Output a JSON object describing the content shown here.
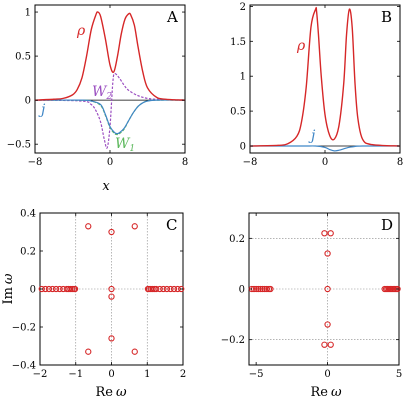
{
  "colors": {
    "rho": "#d62728",
    "j": "#3f86c6",
    "W1": "#5cb85c",
    "W2": "#9b4fc1",
    "marker": "#d62728",
    "grid": "#888888"
  },
  "chart_data": [
    {
      "panel_label": "A",
      "type": "line",
      "xlabel": "x",
      "xlim": [
        -8,
        8
      ],
      "ylim": [
        -0.6,
        1.08
      ],
      "xticks": [
        -8,
        0,
        8
      ],
      "xtick_labels": [
        "−8",
        "0",
        "8"
      ],
      "yticks": [
        -0.5,
        0,
        0.5,
        1
      ],
      "ytick_labels": [
        "−0.5",
        "0",
        "0.5",
        "1"
      ],
      "annotations": {
        "rho": "ρ",
        "j": "j",
        "W2_base": "W",
        "W2_sub": "2",
        "W1_base": "W",
        "W1_sub": "1"
      },
      "series": [
        {
          "key": "rho",
          "x": [
            -8,
            -6,
            -5,
            -4,
            -3.5,
            -3,
            -2.5,
            -2,
            -1.5,
            -1.3,
            -1,
            -0.5,
            0,
            0.4,
            0.8,
            1.2,
            1.6,
            2,
            2.2,
            2.6,
            3,
            3.5,
            4,
            5,
            6,
            8
          ],
          "y": [
            0,
            0.01,
            0.02,
            0.06,
            0.12,
            0.25,
            0.5,
            0.8,
            0.97,
            1.0,
            0.95,
            0.7,
            0.4,
            0.32,
            0.5,
            0.75,
            0.92,
            0.98,
            0.97,
            0.85,
            0.6,
            0.32,
            0.14,
            0.03,
            0.01,
            0
          ]
        },
        {
          "key": "j",
          "x": [
            -8,
            -3,
            -2,
            -1,
            -0.5,
            0,
            0.5,
            0.8,
            1,
            1.5,
            2,
            2.5,
            3,
            3.5,
            4,
            5,
            8
          ],
          "y": [
            0,
            0,
            -0.01,
            -0.05,
            -0.16,
            -0.3,
            -0.37,
            -0.38,
            -0.37,
            -0.32,
            -0.23,
            -0.14,
            -0.07,
            -0.03,
            -0.01,
            0,
            0
          ]
        },
        {
          "key": "W1",
          "x": [
            -8,
            -3,
            -2,
            -1,
            -0.5,
            0,
            0.5,
            0.8,
            1,
            1.5,
            2,
            2.5,
            3,
            3.5,
            4,
            5,
            8
          ],
          "y": [
            0,
            0,
            -0.01,
            -0.06,
            -0.17,
            -0.31,
            -0.38,
            -0.39,
            -0.38,
            -0.33,
            -0.23,
            -0.14,
            -0.07,
            -0.03,
            -0.01,
            0,
            0
          ]
        },
        {
          "key": "W2",
          "x": [
            -8,
            -3,
            -2,
            -1.5,
            -1,
            -0.6,
            -0.3,
            0,
            0.3,
            0.5,
            1,
            1.5,
            2,
            3,
            4,
            5,
            8
          ],
          "y": [
            0,
            -0.01,
            -0.05,
            -0.12,
            -0.25,
            -0.45,
            -0.54,
            -0.3,
            0.2,
            0.3,
            0.25,
            0.17,
            0.11,
            0.05,
            0.02,
            0.01,
            0
          ]
        }
      ]
    },
    {
      "panel_label": "B",
      "type": "line",
      "xlim": [
        -8,
        8
      ],
      "ylim": [
        -0.1,
        2.02
      ],
      "xticks": [
        -8,
        0,
        8
      ],
      "xtick_labels": [
        "−8",
        "0",
        "8"
      ],
      "yticks": [
        0,
        0.5,
        1,
        1.5,
        2
      ],
      "ytick_labels": [
        "0",
        "0.5",
        "1",
        "1.5",
        "2"
      ],
      "annotations": {
        "rho": "ρ",
        "j": "j"
      },
      "series": [
        {
          "key": "rho",
          "x": [
            -8,
            -5,
            -4,
            -3,
            -2.5,
            -2,
            -1.5,
            -1,
            -0.9,
            -0.7,
            -0.4,
            0,
            0.5,
            1,
            1.5,
            2,
            2.3,
            2.6,
            2.9,
            3.2,
            3.5,
            4,
            5,
            8
          ],
          "y": [
            0,
            0.01,
            0.03,
            0.14,
            0.35,
            0.85,
            1.7,
            1.96,
            1.93,
            1.6,
            1.0,
            0.45,
            0.15,
            0.1,
            0.3,
            0.9,
            1.6,
            1.96,
            1.7,
            0.9,
            0.4,
            0.1,
            0.02,
            0
          ]
        },
        {
          "key": "j",
          "x": [
            -8,
            -3,
            -2,
            -1,
            0,
            0.5,
            1,
            1.5,
            2,
            2.5,
            3,
            4,
            8
          ],
          "y": [
            0,
            0,
            0,
            0,
            -0.02,
            -0.05,
            -0.07,
            -0.06,
            -0.04,
            -0.02,
            -0.01,
            0,
            0
          ]
        }
      ]
    },
    {
      "panel_label": "C",
      "type": "scatter",
      "xlabel_base": "Re",
      "ylabel_base": "Im",
      "var": "ω",
      "xlim": [
        -2,
        2
      ],
      "ylim": [
        -0.4,
        0.4
      ],
      "xticks": [
        -2,
        -1,
        0,
        1,
        2
      ],
      "xtick_labels": [
        "−2",
        "−1",
        "0",
        "1",
        "2"
      ],
      "yticks": [
        -0.4,
        -0.2,
        0,
        0.2,
        0.4
      ],
      "ytick_labels": [
        "−0.4",
        "−0.2",
        "0",
        "0.2",
        "0.4"
      ],
      "vlines": [
        -1,
        0,
        1
      ],
      "hlines": [],
      "points": [
        [
          -1.95,
          0
        ],
        [
          -1.85,
          0
        ],
        [
          -1.75,
          0
        ],
        [
          -1.65,
          0
        ],
        [
          -1.55,
          0
        ],
        [
          -1.45,
          0
        ],
        [
          -1.35,
          0
        ],
        [
          -1.25,
          0
        ],
        [
          -1.2,
          0
        ],
        [
          -1.15,
          0
        ],
        [
          -1.1,
          0
        ],
        [
          -1.05,
          0
        ],
        [
          -1.02,
          0
        ],
        [
          1.02,
          0
        ],
        [
          1.05,
          0
        ],
        [
          1.1,
          0
        ],
        [
          1.15,
          0
        ],
        [
          1.2,
          0
        ],
        [
          1.25,
          0
        ],
        [
          1.35,
          0
        ],
        [
          1.45,
          0
        ],
        [
          1.55,
          0
        ],
        [
          1.65,
          0
        ],
        [
          1.75,
          0
        ],
        [
          1.85,
          0
        ],
        [
          1.95,
          0
        ],
        [
          -0.65,
          0.33
        ],
        [
          0.65,
          0.33
        ],
        [
          0,
          0.3
        ],
        [
          0,
          0
        ],
        [
          0,
          -0.04
        ],
        [
          0,
          -0.26
        ],
        [
          -0.65,
          -0.33
        ],
        [
          0.65,
          -0.33
        ]
      ]
    },
    {
      "panel_label": "D",
      "type": "scatter",
      "xlabel_base": "Re",
      "var": "ω",
      "xlim": [
        -5.5,
        5
      ],
      "ylim": [
        -0.3,
        0.3
      ],
      "xticks": [
        -5,
        0,
        5
      ],
      "xtick_labels": [
        "−5",
        "0",
        "5"
      ],
      "yticks": [
        -0.2,
        0,
        0.2
      ],
      "ytick_labels": [
        "−0.2",
        "0",
        "0.2"
      ],
      "vlines": [
        0
      ],
      "hlines": [
        -0.2,
        0.2
      ],
      "points": [
        [
          -5.3,
          0
        ],
        [
          -5.15,
          0
        ],
        [
          -5.0,
          0
        ],
        [
          -4.85,
          0
        ],
        [
          -4.7,
          0
        ],
        [
          -4.55,
          0
        ],
        [
          -4.4,
          0
        ],
        [
          -4.25,
          0
        ],
        [
          -4.1,
          0
        ],
        [
          -4.0,
          0
        ],
        [
          4.0,
          0
        ],
        [
          4.1,
          0
        ],
        [
          4.2,
          0
        ],
        [
          4.3,
          0
        ],
        [
          4.4,
          0
        ],
        [
          4.5,
          0
        ],
        [
          4.6,
          0
        ],
        [
          4.7,
          0
        ],
        [
          4.8,
          0
        ],
        [
          4.9,
          0
        ],
        [
          -0.22,
          0.22
        ],
        [
          0.22,
          0.22
        ],
        [
          0,
          0.14
        ],
        [
          0,
          0
        ],
        [
          0,
          -0.14
        ],
        [
          -0.22,
          -0.22
        ],
        [
          0.22,
          -0.22
        ]
      ]
    }
  ]
}
